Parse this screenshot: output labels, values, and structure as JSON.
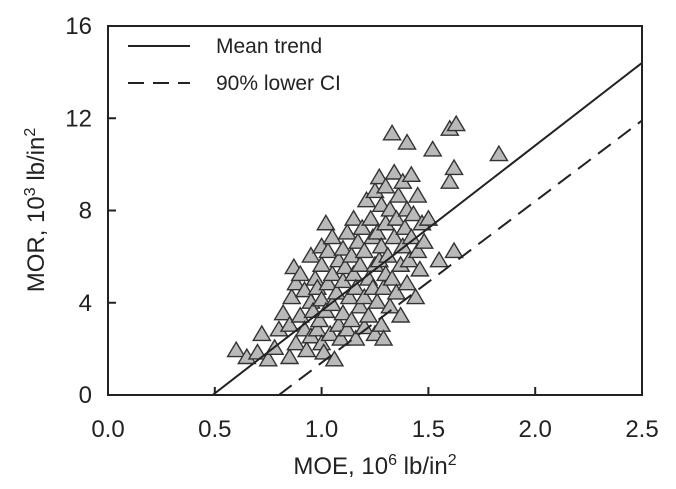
{
  "chart_data": {
    "type": "scatter",
    "title": "",
    "xlabel": {
      "base": "MOE, 10",
      "sup": "6",
      "unit": " lb/in",
      "unit_sup": "2"
    },
    "ylabel": {
      "base": "MOR, 10",
      "sup": "3",
      "unit": " lb/in",
      "unit_sup": "2"
    },
    "xlim": [
      0.0,
      2.5
    ],
    "ylim": [
      0,
      16
    ],
    "xticks": [
      "0.0",
      "0.5",
      "1.0",
      "1.5",
      "2.0",
      "2.5"
    ],
    "yticks": [
      "0",
      "4",
      "8",
      "12",
      "16"
    ],
    "grid": false,
    "legend": {
      "placement": "top-left",
      "entries": [
        {
          "label": "Mean trend",
          "style": "solid"
        },
        {
          "label": "90% lower CI",
          "style": "dashed"
        }
      ]
    },
    "lines": [
      {
        "name": "Mean trend",
        "style": "solid",
        "x": [
          0.49,
          2.5
        ],
        "y": [
          0,
          14.4
        ]
      },
      {
        "name": "90% lower CI",
        "style": "dashed",
        "x": [
          0.8,
          2.5
        ],
        "y": [
          0,
          11.9
        ]
      }
    ],
    "series": [
      {
        "marker": "triangle",
        "points": [
          [
            0.6,
            1.9
          ],
          [
            0.65,
            1.6
          ],
          [
            0.7,
            1.8
          ],
          [
            0.72,
            2.6
          ],
          [
            0.75,
            1.5
          ],
          [
            0.78,
            2.0
          ],
          [
            0.8,
            2.8
          ],
          [
            0.82,
            3.5
          ],
          [
            0.85,
            1.6
          ],
          [
            0.85,
            3.0
          ],
          [
            0.86,
            4.2
          ],
          [
            0.87,
            5.5
          ],
          [
            0.88,
            4.8
          ],
          [
            0.88,
            2.2
          ],
          [
            0.9,
            5.2
          ],
          [
            0.9,
            3.4
          ],
          [
            0.92,
            2.8
          ],
          [
            0.92,
            4.5
          ],
          [
            0.93,
            1.9
          ],
          [
            0.95,
            4.0
          ],
          [
            0.95,
            6.0
          ],
          [
            0.95,
            2.5
          ],
          [
            0.96,
            3.6
          ],
          [
            0.97,
            5.0
          ],
          [
            0.98,
            4.6
          ],
          [
            0.98,
            2.8
          ],
          [
            0.99,
            3.2
          ],
          [
            1.0,
            4.1
          ],
          [
            1.0,
            5.6
          ],
          [
            1.0,
            6.4
          ],
          [
            1.0,
            2.2
          ],
          [
            1.01,
            1.8
          ],
          [
            1.02,
            3.6
          ],
          [
            1.02,
            7.4
          ],
          [
            1.03,
            4.8
          ],
          [
            1.03,
            6.2
          ],
          [
            1.04,
            2.6
          ],
          [
            1.05,
            5.2
          ],
          [
            1.05,
            3.9
          ],
          [
            1.05,
            6.8
          ],
          [
            1.06,
            1.5
          ],
          [
            1.07,
            4.4
          ],
          [
            1.08,
            3.0
          ],
          [
            1.08,
            5.8
          ],
          [
            1.09,
            2.4
          ],
          [
            1.1,
            4.9
          ],
          [
            1.1,
            6.3
          ],
          [
            1.1,
            3.5
          ],
          [
            1.11,
            5.5
          ],
          [
            1.12,
            2.8
          ],
          [
            1.12,
            7.0
          ],
          [
            1.13,
            4.2
          ],
          [
            1.14,
            6.0
          ],
          [
            1.14,
            3.2
          ],
          [
            1.15,
            5.2
          ],
          [
            1.15,
            7.6
          ],
          [
            1.16,
            2.4
          ],
          [
            1.16,
            4.6
          ],
          [
            1.17,
            6.6
          ],
          [
            1.18,
            3.8
          ],
          [
            1.18,
            5.6
          ],
          [
            1.19,
            7.2
          ],
          [
            1.2,
            4.2
          ],
          [
            1.2,
            2.9
          ],
          [
            1.2,
            6.2
          ],
          [
            1.21,
            8.4
          ],
          [
            1.22,
            5.0
          ],
          [
            1.22,
            3.4
          ],
          [
            1.23,
            7.6
          ],
          [
            1.24,
            4.6
          ],
          [
            1.24,
            6.8
          ],
          [
            1.25,
            2.6
          ],
          [
            1.25,
            5.6
          ],
          [
            1.25,
            8.8
          ],
          [
            1.26,
            4.0
          ],
          [
            1.26,
            7.0
          ],
          [
            1.27,
            9.4
          ],
          [
            1.27,
            5.8
          ],
          [
            1.28,
            3.0
          ],
          [
            1.28,
            6.4
          ],
          [
            1.28,
            8.2
          ],
          [
            1.29,
            4.6
          ],
          [
            1.29,
            2.4
          ],
          [
            1.3,
            7.4
          ],
          [
            1.3,
            5.2
          ],
          [
            1.3,
            9.0
          ],
          [
            1.31,
            6.0
          ],
          [
            1.32,
            3.8
          ],
          [
            1.32,
            8.0
          ],
          [
            1.33,
            11.3
          ],
          [
            1.33,
            5.0
          ],
          [
            1.34,
            6.8
          ],
          [
            1.34,
            9.6
          ],
          [
            1.35,
            4.4
          ],
          [
            1.35,
            7.6
          ],
          [
            1.36,
            8.6
          ],
          [
            1.37,
            5.6
          ],
          [
            1.37,
            3.4
          ],
          [
            1.38,
            9.2
          ],
          [
            1.38,
            6.4
          ],
          [
            1.39,
            7.2
          ],
          [
            1.4,
            4.8
          ],
          [
            1.4,
            10.9
          ],
          [
            1.4,
            8.0
          ],
          [
            1.41,
            5.8
          ],
          [
            1.42,
            9.5
          ],
          [
            1.42,
            6.8
          ],
          [
            1.43,
            7.8
          ],
          [
            1.44,
            4.2
          ],
          [
            1.45,
            6.2
          ],
          [
            1.45,
            8.6
          ],
          [
            1.46,
            5.4
          ],
          [
            1.47,
            7.4
          ],
          [
            1.48,
            6.6
          ],
          [
            1.5,
            7.6
          ],
          [
            1.52,
            10.6
          ],
          [
            1.55,
            5.8
          ],
          [
            1.6,
            9.2
          ],
          [
            1.6,
            11.5
          ],
          [
            1.62,
            9.8
          ],
          [
            1.62,
            6.2
          ],
          [
            1.63,
            11.7
          ],
          [
            1.83,
            10.4
          ]
        ]
      }
    ]
  }
}
